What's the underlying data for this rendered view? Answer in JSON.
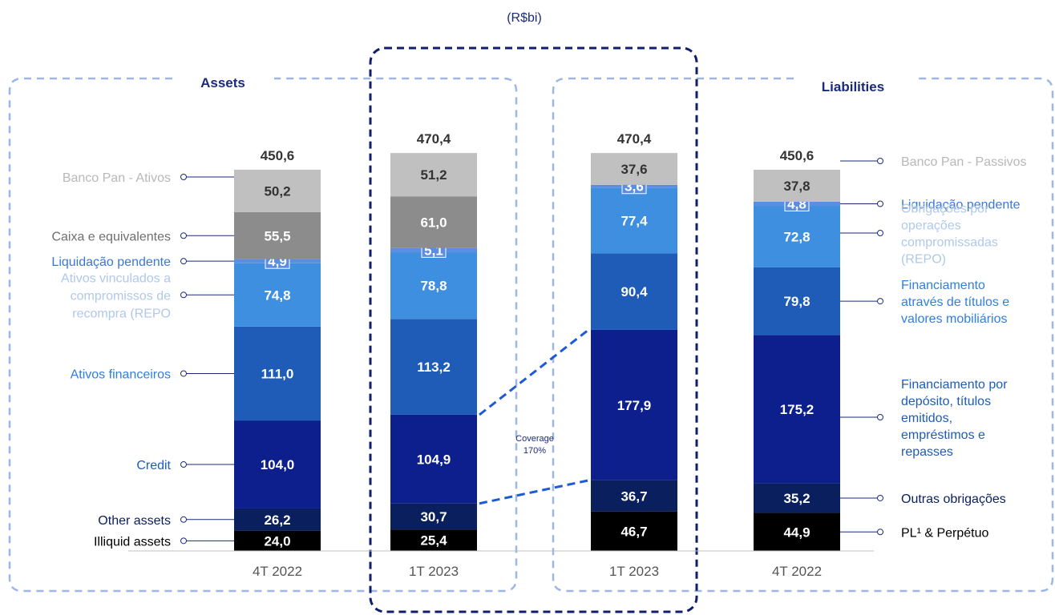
{
  "unit_label": "(R$bi)",
  "sections": {
    "assets_title": "Assets",
    "liabilities_title": "Liabilities"
  },
  "coverage_label": {
    "line1": "Coverage",
    "line2": "170%"
  },
  "colors": {
    "accent_navy": "#1a2b7c",
    "border_light": "#9cb6e8",
    "border_dark": "#0f1f6b",
    "banco_pan": "#c0c0c0",
    "caixa": "#8c8c8c",
    "liquidacao": "#5b8ee0",
    "repo": "#3f8fe0",
    "ativos_fin": "#1e5cb8",
    "credit": "#0d1f8c",
    "other": "#0a1f5e",
    "illiquid": "#000000"
  },
  "chart_data": {
    "type": "bar",
    "stacked": true,
    "title": "(R$bi)",
    "categories": [
      "4T 2022",
      "1T 2023",
      "1T 2023",
      "4T 2022"
    ],
    "groups": [
      "Assets",
      "Assets",
      "Liabilities",
      "Liabilities"
    ],
    "totals": [
      "450,6",
      "470,4",
      "470,4",
      "450,6"
    ],
    "totals_values": [
      450.6,
      470.4,
      470.4,
      450.6
    ],
    "assets_series": [
      {
        "name": "Illiquid assets",
        "color": "#000000",
        "values": [
          24.0,
          25.4
        ],
        "labels": [
          "24,0",
          "25,4"
        ]
      },
      {
        "name": "Other assets",
        "color": "#0a1f5e",
        "values": [
          26.2,
          30.7
        ],
        "labels": [
          "26,2",
          "30,7"
        ]
      },
      {
        "name": "Credit",
        "color": "#0d1f8c",
        "values": [
          104.0,
          104.9
        ],
        "labels": [
          "104,0",
          "104,9"
        ]
      },
      {
        "name": "Ativos financeiros",
        "color": "#1e5cb8",
        "values": [
          111.0,
          113.2
        ],
        "labels": [
          "111,0",
          "113,2"
        ]
      },
      {
        "name": "Ativos vinculados a compromissos de recompra (REPO)",
        "color": "#3f8fe0",
        "values": [
          74.8,
          78.8
        ],
        "labels": [
          "74,8",
          "78,8"
        ]
      },
      {
        "name": "Liquidação pendente",
        "color": "#5b8ee0",
        "values": [
          4.9,
          5.1
        ],
        "labels": [
          "4,9",
          "5,1"
        ]
      },
      {
        "name": "Caixa e equivalentes",
        "color": "#8c8c8c",
        "values": [
          55.5,
          61.0
        ],
        "labels": [
          "55,5",
          "61,0"
        ]
      },
      {
        "name": "Banco Pan - Ativos",
        "color": "#c0c0c0",
        "values": [
          50.2,
          51.2
        ],
        "labels": [
          "50,2",
          "51,2"
        ]
      }
    ],
    "liabilities_series": [
      {
        "name": "PL¹ & Perpétuo",
        "color": "#000000",
        "values": [
          46.7,
          44.9
        ],
        "labels": [
          "46,7",
          "44,9"
        ]
      },
      {
        "name": "Outras obrigações",
        "color": "#0a1f5e",
        "values": [
          36.7,
          35.2
        ],
        "labels": [
          "36,7",
          "35,2"
        ]
      },
      {
        "name": "Financiamento por depósito, títulos emitidos, empréstimos e repasses",
        "color": "#0d1f8c",
        "values": [
          177.9,
          175.2
        ],
        "labels": [
          "177,9",
          "175,2"
        ]
      },
      {
        "name": "Financiamento através de títulos e valores mobiliários",
        "color": "#1e5cb8",
        "values": [
          90.4,
          79.8
        ],
        "labels": [
          "90,4",
          "79,8"
        ]
      },
      {
        "name": "Obrigações por operações compromissadas (REPO)",
        "color": "#3f8fe0",
        "values": [
          77.4,
          72.8
        ],
        "labels": [
          "77,4",
          "72,8"
        ]
      },
      {
        "name": "Liquidação pendente",
        "color": "#5b8ee0",
        "values": [
          3.6,
          4.8
        ],
        "labels": [
          "3,6",
          "4,8"
        ]
      },
      {
        "name": "Banco Pan - Passivos",
        "color": "#c0c0c0",
        "values": [
          37.6,
          37.8
        ],
        "labels": [
          "37,6",
          "37,8"
        ]
      }
    ]
  },
  "left_legend": [
    {
      "lines": [
        "Banco Pan - Ativos"
      ],
      "color": "#b8b8b8"
    },
    {
      "lines": [
        "Caixa e equivalentes"
      ],
      "color": "#6e6e6e"
    },
    {
      "lines": [
        "Liquidação pendente"
      ],
      "color": "#3a78d8"
    },
    {
      "lines": [
        "Ativos vinculados a",
        "compromissos de",
        "recompra (REPO"
      ],
      "color": "#b0c8ea"
    },
    {
      "lines": [
        "Ativos financeiros"
      ],
      "color": "#2f7fe0"
    },
    {
      "lines": [
        "Credit"
      ],
      "color": "#1e5cb8"
    },
    {
      "lines": [
        "Other assets"
      ],
      "color": "#0a1f5e"
    },
    {
      "lines": [
        "Illiquid assets"
      ],
      "color": "#000000"
    }
  ],
  "right_legend": [
    {
      "lines": [
        "Banco Pan - Passivos"
      ],
      "color": "#b8b8b8"
    },
    {
      "lines": [
        "Liquidação pendente"
      ],
      "color": "#3a78d8"
    },
    {
      "lines": [
        "Obrigações por",
        "operações",
        "compromissadas",
        "(REPO)"
      ],
      "color": "#b0c8ea"
    },
    {
      "lines": [
        "Financiamento",
        "através de títulos e",
        "valores mobiliários"
      ],
      "color": "#2f7fe0"
    },
    {
      "lines": [
        "Financiamento por",
        "depósito, títulos",
        "emitidos,",
        "empréstimos e",
        "repasses"
      ],
      "color": "#1e5cb8"
    },
    {
      "lines": [
        "Outras obrigações"
      ],
      "color": "#0a1f5e"
    },
    {
      "lines": [
        "PL¹ & Perpétuo"
      ],
      "color": "#000000"
    }
  ]
}
